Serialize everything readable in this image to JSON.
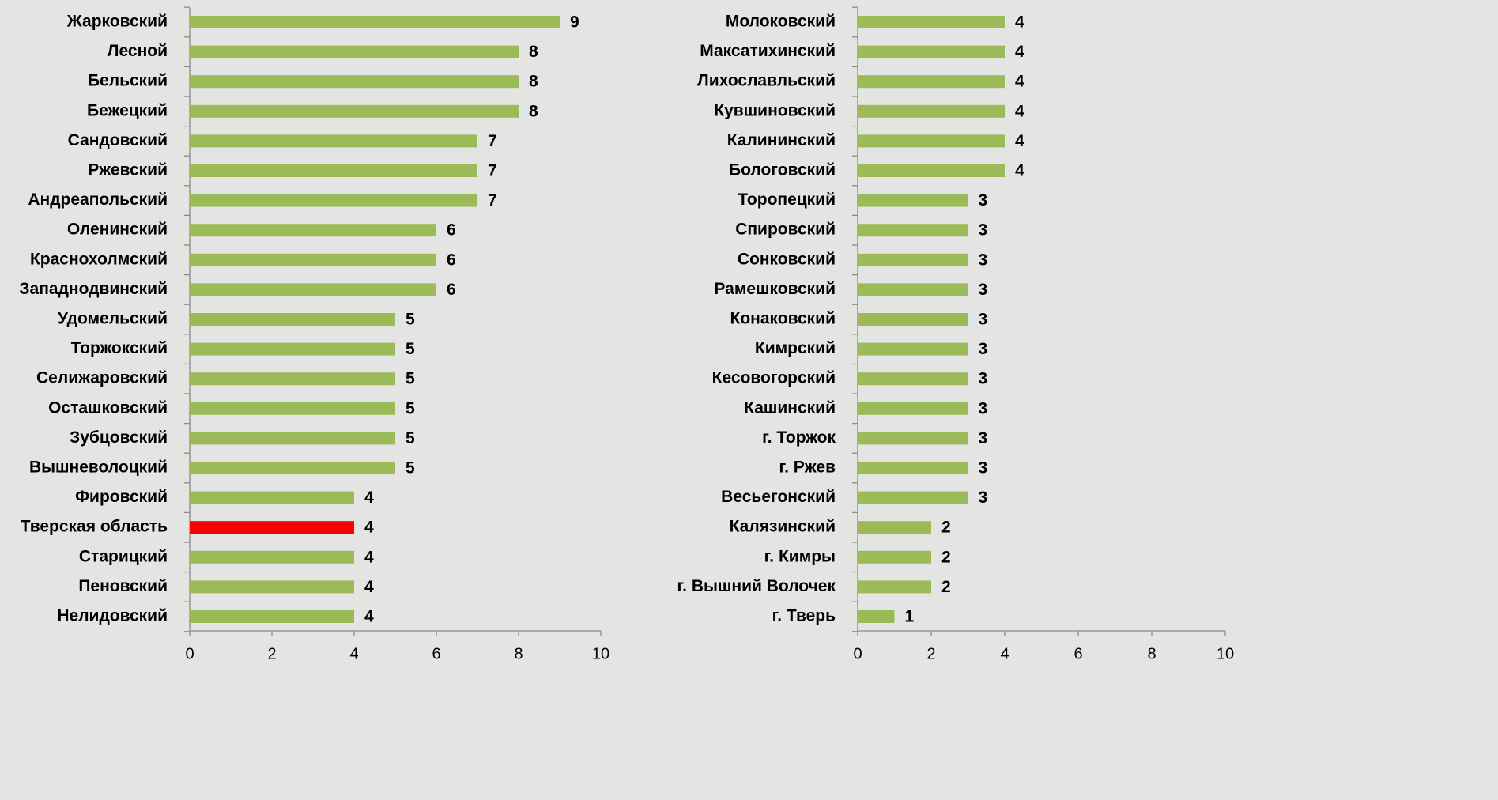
{
  "chart_data": [
    {
      "type": "barh",
      "categories": [
        "Жарковский",
        "Лесной",
        "Бельский",
        "Бежецкий",
        "Сандовский",
        "Ржевский",
        "Андреапольский",
        "Оленинский",
        "Краснохолмский",
        "Западнодвинский",
        "Удомельский",
        "Торжокский",
        "Селижаровский",
        "Осташковский",
        "Зубцовский",
        "Вышневолоцкий",
        "Фировский",
        "Тверская область",
        "Старицкий",
        "Пеновский",
        "Нелидовский"
      ],
      "values": [
        9,
        8,
        8,
        8,
        7,
        7,
        7,
        6,
        6,
        6,
        5,
        5,
        5,
        5,
        5,
        5,
        4,
        4,
        4,
        4,
        4
      ],
      "colors": [
        "#9bbb59",
        "#9bbb59",
        "#9bbb59",
        "#9bbb59",
        "#9bbb59",
        "#9bbb59",
        "#9bbb59",
        "#9bbb59",
        "#9bbb59",
        "#9bbb59",
        "#9bbb59",
        "#9bbb59",
        "#9bbb59",
        "#9bbb59",
        "#9bbb59",
        "#9bbb59",
        "#9bbb59",
        "#ff0000",
        "#9bbb59",
        "#9bbb59",
        "#9bbb59"
      ],
      "xlim": [
        0,
        10
      ],
      "xticks": [
        0,
        2,
        4,
        6,
        8,
        10
      ]
    },
    {
      "type": "barh",
      "categories": [
        "Молоковский",
        "Максатихинский",
        "Лихославльский",
        "Кувшиновский",
        "Калининский",
        "Бологовский",
        "Торопецкий",
        "Спировский",
        "Сонковский",
        "Рамешковский",
        "Конаковский",
        "Кимрский",
        "Кесовогорский",
        "Кашинский",
        "г. Торжок",
        "г. Ржев",
        "Весьегонский",
        "Калязинский",
        "г. Кимры",
        "г. Вышний Волочек",
        "г. Тверь"
      ],
      "values": [
        4,
        4,
        4,
        4,
        4,
        4,
        3,
        3,
        3,
        3,
        3,
        3,
        3,
        3,
        3,
        3,
        3,
        2,
        2,
        2,
        1
      ],
      "color": "#9bbb59",
      "xlim": [
        0,
        10
      ],
      "xticks": [
        0,
        2,
        4,
        6,
        8,
        10
      ]
    }
  ]
}
